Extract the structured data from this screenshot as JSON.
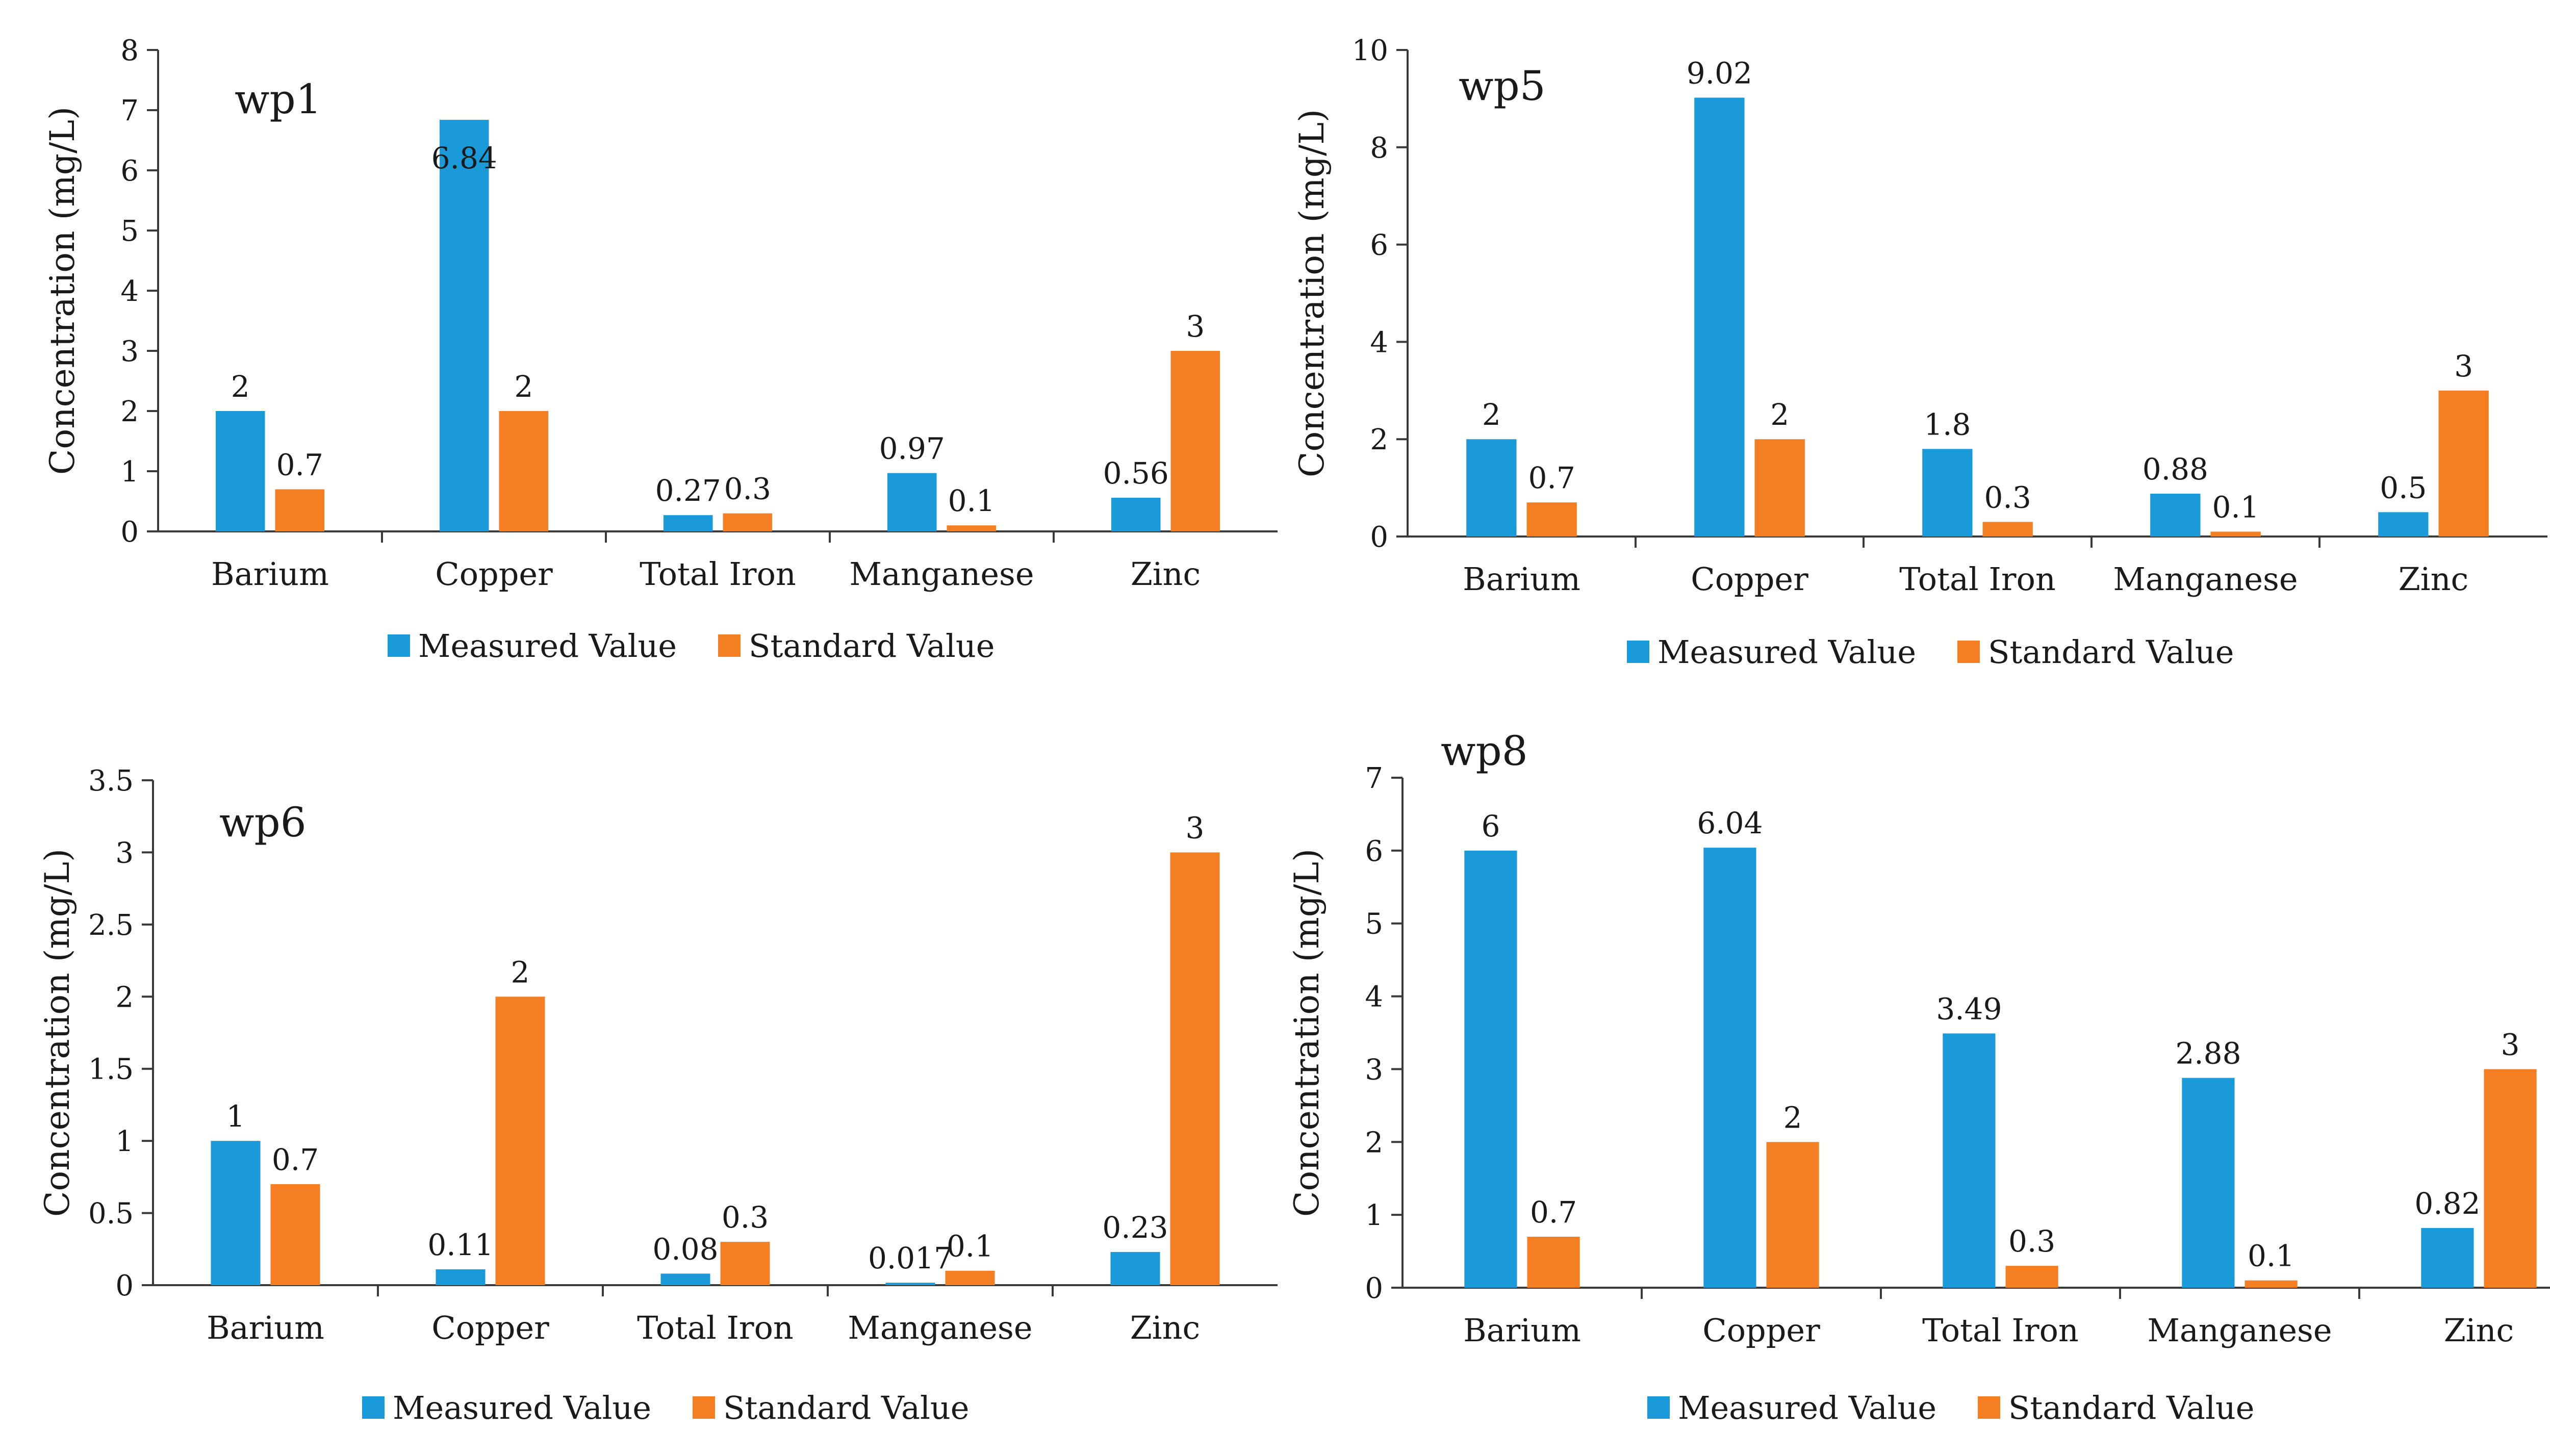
{
  "series_names": [
    "Measured Value",
    "Standard Value"
  ],
  "colors": {
    "measured": "#1a9ad8",
    "standard": "#f47f22"
  },
  "chart_data": [
    {
      "type": "bar",
      "title": "wp1",
      "ylabel": "Concentration (mg/L)",
      "categories": [
        "Barium",
        "Copper",
        "Total Iron",
        "Manganese",
        "Zinc"
      ],
      "ylim": [
        0,
        8
      ],
      "yticks": [
        0,
        1,
        2,
        3,
        4,
        5,
        6,
        7,
        8
      ],
      "series": [
        {
          "name": "Measured Value",
          "values": [
            2,
            6.84,
            0.27,
            0.97,
            0.56
          ],
          "labels": [
            "2",
            "6.84",
            "0.27",
            "0.97",
            "0.56"
          ]
        },
        {
          "name": "Standard Value",
          "values": [
            0.7,
            2,
            0.3,
            0.1,
            3
          ],
          "labels": [
            "0.7",
            "2",
            "0.3",
            "0.1",
            "3"
          ]
        }
      ],
      "legend": "bottom"
    },
    {
      "type": "bar",
      "title": "wp5",
      "ylabel": "Concentration (mg/L)",
      "categories": [
        "Barium",
        "Copper",
        "Total Iron",
        "Manganese",
        "Zinc"
      ],
      "ylim": [
        0,
        10
      ],
      "yticks": [
        0,
        2,
        4,
        6,
        8,
        10
      ],
      "series": [
        {
          "name": "Measured Value",
          "values": [
            2,
            9.02,
            1.8,
            0.88,
            0.5
          ],
          "labels": [
            "2",
            "9.02",
            "1.8",
            "0.88",
            "0.5"
          ]
        },
        {
          "name": "Standard Value",
          "values": [
            0.7,
            2,
            0.3,
            0.1,
            3
          ],
          "labels": [
            "0.7",
            "2",
            "0.3",
            "0.1",
            "3"
          ]
        }
      ],
      "legend": "bottom"
    },
    {
      "type": "bar",
      "title": "wp6",
      "ylabel": "Concentration (mg/L)",
      "categories": [
        "Barium",
        "Copper",
        "Total Iron",
        "Manganese",
        "Zinc"
      ],
      "ylim": [
        0,
        3.5
      ],
      "yticks": [
        0,
        0.5,
        1,
        1.5,
        2,
        2.5,
        3,
        3.5
      ],
      "series": [
        {
          "name": "Measured Value",
          "values": [
            1,
            0.11,
            0.08,
            0.017,
            0.23
          ],
          "labels": [
            "1",
            "0.11",
            "0.08",
            "0.017",
            "0.23"
          ]
        },
        {
          "name": "Standard Value",
          "values": [
            0.7,
            2,
            0.3,
            0.1,
            3
          ],
          "labels": [
            "0.7",
            "2",
            "0.3",
            "0.1",
            "3"
          ]
        }
      ],
      "legend": "bottom"
    },
    {
      "type": "bar",
      "title": "wp8",
      "ylabel": "Concentration (mg/L)",
      "categories": [
        "Barium",
        "Copper",
        "Total Iron",
        "Manganese",
        "Zinc"
      ],
      "ylim": [
        0,
        7
      ],
      "yticks": [
        0,
        1,
        2,
        3,
        4,
        5,
        6,
        7
      ],
      "series": [
        {
          "name": "Measured Value",
          "values": [
            6,
            6.04,
            3.49,
            2.88,
            0.82
          ],
          "labels": [
            "6",
            "6.04",
            "3.49",
            "2.88",
            "0.82"
          ]
        },
        {
          "name": "Standard Value",
          "values": [
            0.7,
            2,
            0.3,
            0.1,
            3
          ],
          "labels": [
            "0.7",
            "2",
            "0.3",
            "0.1",
            "3"
          ]
        }
      ],
      "legend": "bottom"
    }
  ]
}
